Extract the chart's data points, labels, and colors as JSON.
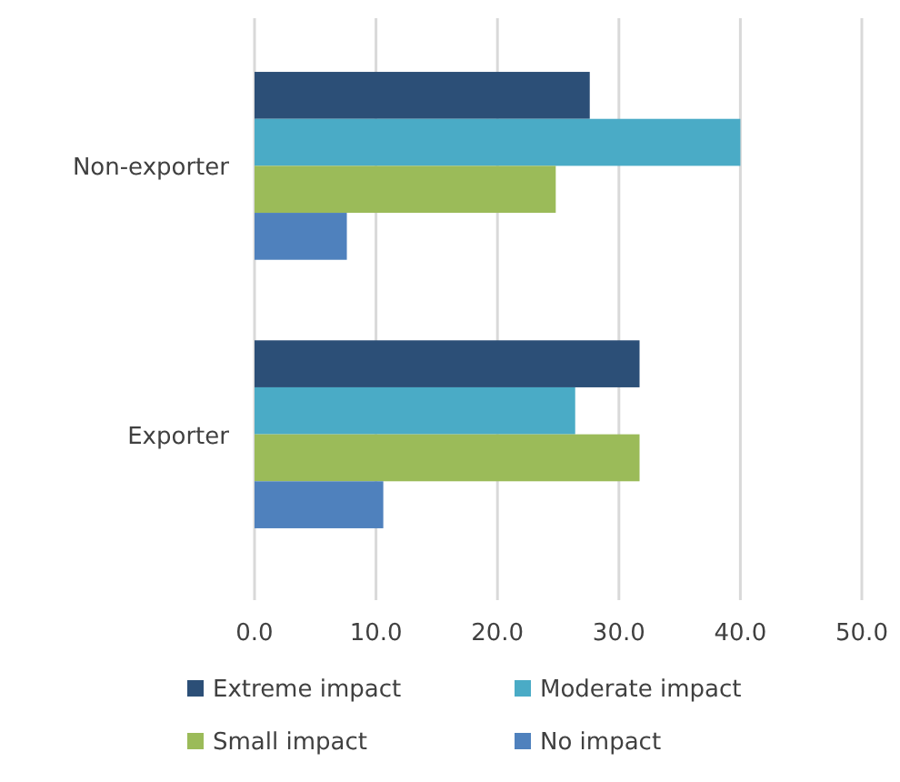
{
  "chart_data": {
    "type": "bar",
    "orientation": "horizontal",
    "categories": [
      "Non-exporter",
      "Exporter"
    ],
    "series": [
      {
        "name": "Extreme impact",
        "color": "#2c4f77",
        "values": [
          27.6,
          31.7
        ]
      },
      {
        "name": "Moderate impact",
        "color": "#4aabc6",
        "values": [
          40.0,
          26.4
        ]
      },
      {
        "name": "Small impact",
        "color": "#9bbb59",
        "values": [
          24.8,
          31.7
        ]
      },
      {
        "name": "No impact",
        "color": "#4f81bd",
        "values": [
          7.6,
          10.6
        ]
      }
    ],
    "xlim": [
      0,
      50
    ],
    "xticks": [
      {
        "value": 0,
        "label": "0.0"
      },
      {
        "value": 10,
        "label": "10.0"
      },
      {
        "value": 20,
        "label": "20.0"
      },
      {
        "value": 30,
        "label": "30.0"
      },
      {
        "value": 40,
        "label": "40.0"
      },
      {
        "value": 50,
        "label": "50.0"
      }
    ],
    "grid": "x",
    "legend": "bottom"
  }
}
